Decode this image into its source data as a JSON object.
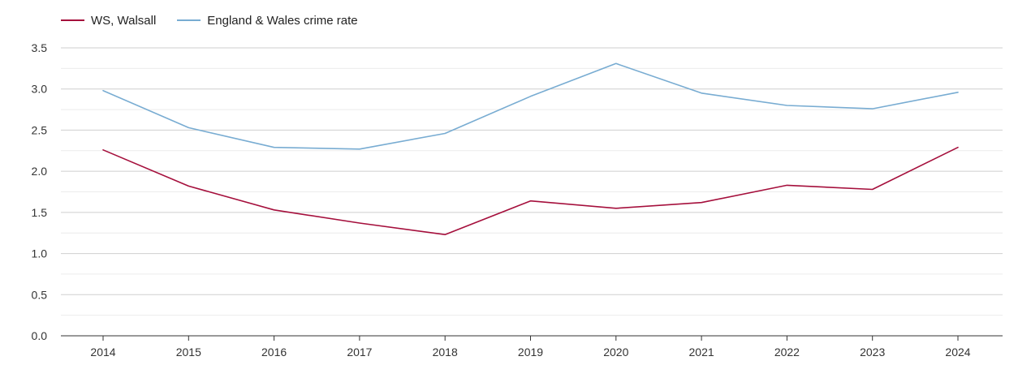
{
  "chart_data": {
    "type": "line",
    "title": "",
    "xlabel": "",
    "ylabel": "",
    "categories": [
      "2014",
      "2015",
      "2016",
      "2017",
      "2018",
      "2019",
      "2020",
      "2021",
      "2022",
      "2023",
      "2024"
    ],
    "ylim": [
      0,
      3.5
    ],
    "yticks": [
      "0.0",
      "0.5",
      "1.0",
      "1.5",
      "2.0",
      "2.5",
      "3.0",
      "3.5"
    ],
    "grid": true,
    "legend_position": "top-left",
    "series": [
      {
        "name": "WS, Walsall",
        "color": "#a50f3c",
        "values": [
          2.26,
          1.82,
          1.53,
          1.37,
          1.23,
          1.64,
          1.55,
          1.62,
          1.83,
          1.78,
          2.29
        ]
      },
      {
        "name": "England & Wales crime rate",
        "color": "#78acd2",
        "values": [
          2.98,
          2.53,
          2.29,
          2.27,
          2.46,
          2.91,
          3.31,
          2.95,
          2.8,
          2.76,
          2.96
        ]
      }
    ]
  }
}
